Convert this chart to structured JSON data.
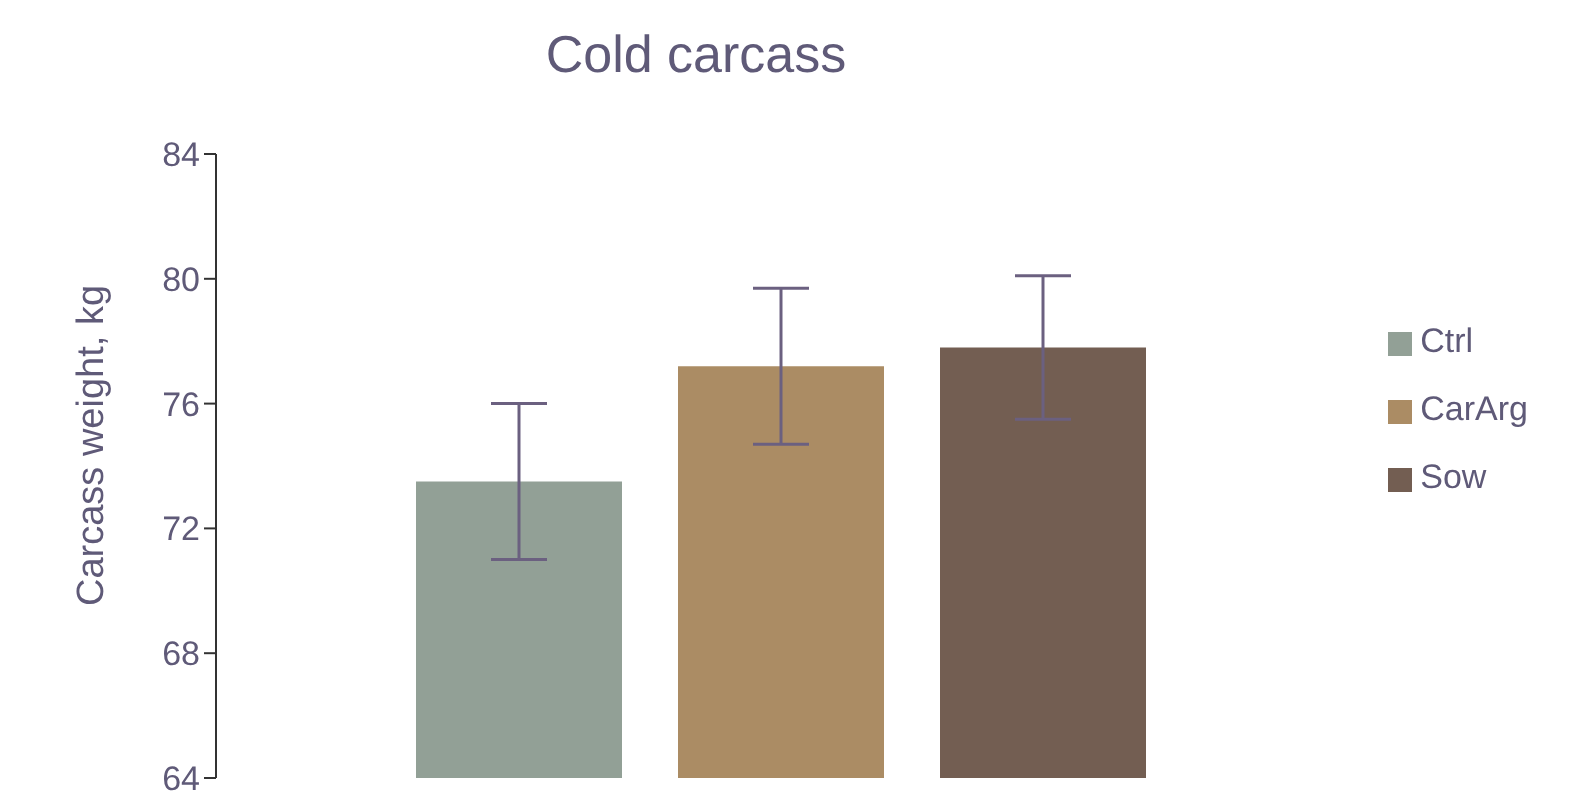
{
  "chart_data": {
    "type": "bar",
    "title": "Cold carcass",
    "ylabel": "Carcass weight, kg",
    "categories": [
      null
    ],
    "series": [
      {
        "name": "Ctrl",
        "color": "#92a096",
        "values": [
          73.5
        ],
        "errors": [
          2.5
        ]
      },
      {
        "name": "CarArg",
        "color": "#ab8c64",
        "values": [
          77.2
        ],
        "errors": [
          2.5
        ]
      },
      {
        "name": "Sow",
        "color": "#735e52",
        "values": [
          77.8
        ],
        "errors": [
          2.3
        ]
      }
    ],
    "ylim": [
      64,
      84
    ],
    "yticks": [
      64,
      68,
      72,
      76,
      80,
      84
    ],
    "grid": false,
    "legend": "right"
  }
}
